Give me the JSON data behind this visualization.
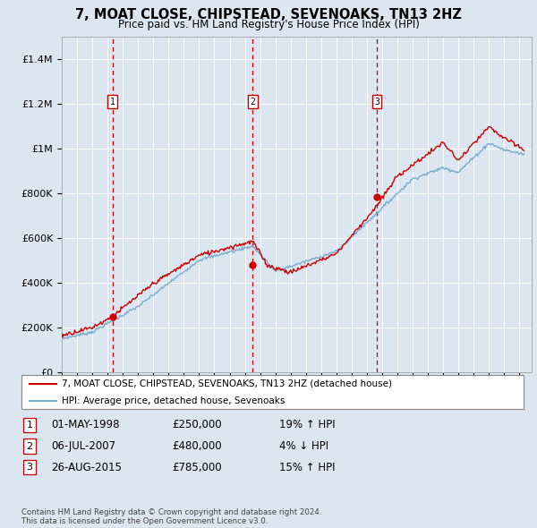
{
  "title": "7, MOAT CLOSE, CHIPSTEAD, SEVENOAKS, TN13 2HZ",
  "subtitle": "Price paid vs. HM Land Registry's House Price Index (HPI)",
  "background_color": "#dce6f0",
  "ylim": [
    0,
    1500000
  ],
  "yticks": [
    0,
    200000,
    400000,
    600000,
    800000,
    1000000,
    1200000,
    1400000
  ],
  "ytick_labels": [
    "£0",
    "£200K",
    "£400K",
    "£600K",
    "£800K",
    "£1M",
    "£1.2M",
    "£1.4M"
  ],
  "xlim_start": 1995.0,
  "xlim_end": 2025.8,
  "sale_dates": [
    1998.33,
    2007.52,
    2015.65
  ],
  "sale_prices": [
    250000,
    480000,
    785000
  ],
  "sale_labels": [
    "1",
    "2",
    "3"
  ],
  "sale_pct": [
    "19% ↑ HPI",
    "4% ↓ HPI",
    "15% ↑ HPI"
  ],
  "sale_dates_str": [
    "01-MAY-1998",
    "06-JUL-2007",
    "26-AUG-2015"
  ],
  "sale_prices_str": [
    "£250,000",
    "£480,000",
    "£785,000"
  ],
  "red_line_color": "#cc0000",
  "blue_line_color": "#7aaccc",
  "vline_color": "#cc0000",
  "legend_line1": "7, MOAT CLOSE, CHIPSTEAD, SEVENOAKS, TN13 2HZ (detached house)",
  "legend_line2": "HPI: Average price, detached house, Sevenoaks",
  "footer_text": "Contains HM Land Registry data © Crown copyright and database right 2024.\nThis data is licensed under the Open Government Licence v3.0."
}
